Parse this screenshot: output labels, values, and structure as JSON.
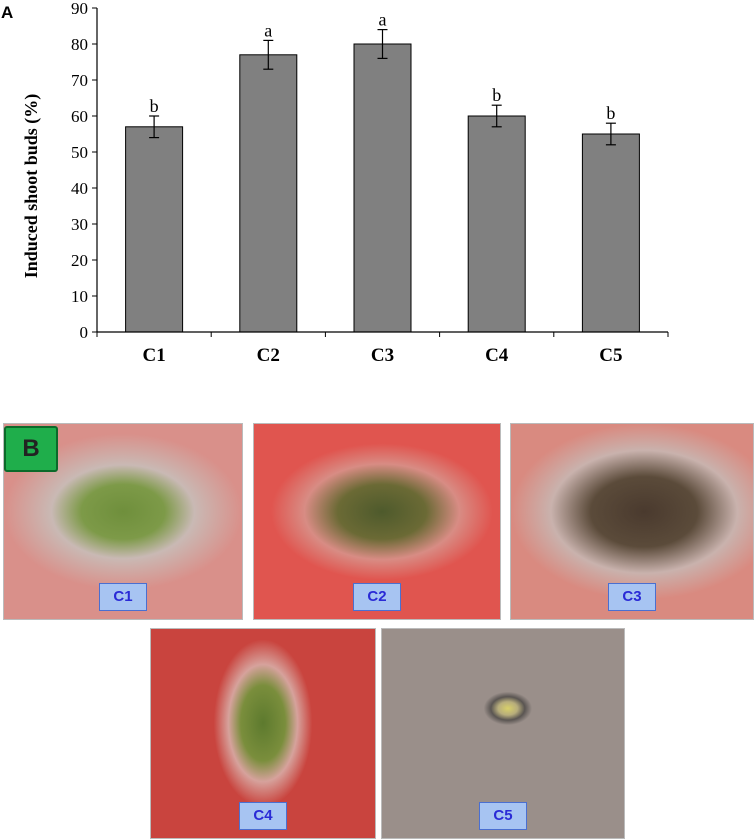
{
  "panel_a": {
    "letter": "A"
  },
  "panel_b": {
    "letter": "B"
  },
  "chart_data": {
    "type": "bar",
    "categories": [
      "C1",
      "C2",
      "C3",
      "C4",
      "C5"
    ],
    "values": [
      57,
      77,
      80,
      60,
      55
    ],
    "errors": [
      3,
      4,
      4,
      3,
      3
    ],
    "significance_letters": [
      "b",
      "a",
      "a",
      "b",
      "b"
    ],
    "title": "",
    "xlabel": "",
    "ylabel": "Induced shoot buds (%)",
    "ylim": [
      0,
      90
    ],
    "yticks": [
      0,
      10,
      20,
      30,
      40,
      50,
      60,
      70,
      80,
      90
    ],
    "bar_color": "#808080",
    "grid": false
  },
  "photos": [
    {
      "label": "C1",
      "tone": "#d9908a"
    },
    {
      "label": "C2",
      "tone": "#e0554f"
    },
    {
      "label": "C3",
      "tone": "#d98a80"
    },
    {
      "label": "C4",
      "tone": "#c9443e"
    },
    {
      "label": "C5",
      "tone": "#9a8f8a"
    }
  ]
}
